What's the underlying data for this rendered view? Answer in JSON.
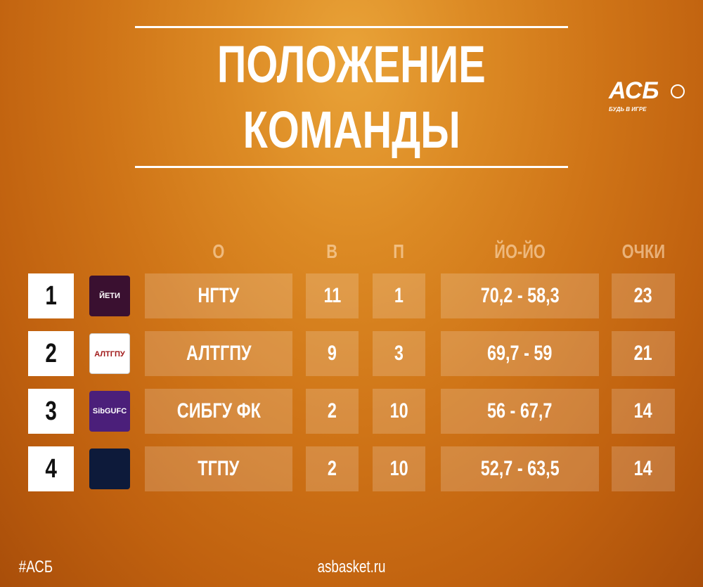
{
  "title": {
    "line1": "ПОЛОЖЕНИЕ",
    "line2": "КОМАНДЫ"
  },
  "brand": {
    "logo": "АСБ",
    "tagline": "БУДЬ В ИГРЕ"
  },
  "columns": {
    "team": "О",
    "wins": "В",
    "losses": "П",
    "score": "ЙО-ЙО",
    "points": "ОЧКИ"
  },
  "rows": [
    {
      "rank": "1",
      "team": "НГТУ",
      "logo_text": "ЙЕТИ",
      "logo_color": "#3a1030",
      "wins": "11",
      "losses": "1",
      "score": "70,2 - 58,3",
      "points": "23"
    },
    {
      "rank": "2",
      "team": "АЛТГПУ",
      "logo_text": "АЛТГПУ",
      "logo_color": "#ffffff",
      "wins": "9",
      "losses": "3",
      "score": "69,7 - 59",
      "points": "21"
    },
    {
      "rank": "3",
      "team": "СИБГУ ФК",
      "logo_text": "SibGUFC",
      "logo_color": "#4b1f7a",
      "wins": "2",
      "losses": "10",
      "score": "56 - 67,7",
      "points": "14"
    },
    {
      "rank": "4",
      "team": "ТГПУ",
      "logo_text": "",
      "logo_color": "#0d1a3a",
      "wins": "2",
      "losses": "10",
      "score": "52,7 - 63,5",
      "points": "14"
    }
  ],
  "footer": {
    "hashtag": "#АСБ",
    "site": "asbasket.ru"
  }
}
